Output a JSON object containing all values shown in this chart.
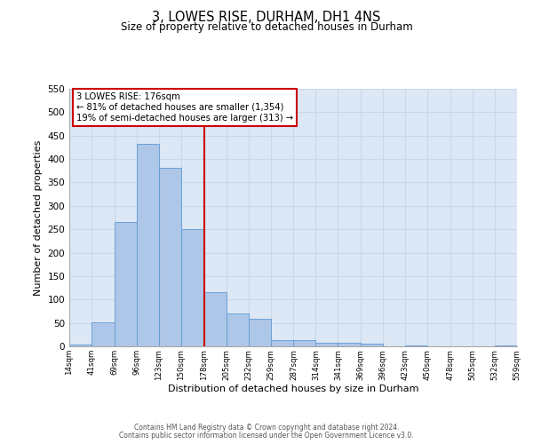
{
  "title": "3, LOWES RISE, DURHAM, DH1 4NS",
  "subtitle": "Size of property relative to detached houses in Durham",
  "xlabel": "Distribution of detached houses by size in Durham",
  "ylabel": "Number of detached properties",
  "bin_edges": [
    14,
    41,
    69,
    96,
    123,
    150,
    178,
    205,
    232,
    259,
    287,
    314,
    341,
    369,
    396,
    423,
    450,
    478,
    505,
    532,
    559
  ],
  "bar_heights": [
    3,
    51,
    265,
    432,
    382,
    250,
    115,
    70,
    58,
    13,
    13,
    8,
    7,
    5,
    0,
    2,
    0,
    0,
    0,
    2
  ],
  "tick_labels": [
    "14sqm",
    "41sqm",
    "69sqm",
    "96sqm",
    "123sqm",
    "150sqm",
    "178sqm",
    "205sqm",
    "232sqm",
    "259sqm",
    "287sqm",
    "314sqm",
    "341sqm",
    "369sqm",
    "396sqm",
    "423sqm",
    "450sqm",
    "478sqm",
    "505sqm",
    "532sqm",
    "559sqm"
  ],
  "bar_color": "#aec6e8",
  "bar_edge_color": "#5b9bd5",
  "vline_x": 178,
  "vline_color": "#cc0000",
  "annotation_line1": "3 LOWES RISE: 176sqm",
  "annotation_line2": "← 81% of detached houses are smaller (1,354)",
  "annotation_line3": "19% of semi-detached houses are larger (313) →",
  "annotation_box_color": "#ffffff",
  "annotation_box_edge_color": "#cc0000",
  "ylim": [
    0,
    550
  ],
  "grid_color": "#c8d8ea",
  "background_color": "#dce8f5",
  "footer1": "Contains HM Land Registry data © Crown copyright and database right 2024.",
  "footer2": "Contains public sector information licensed under the Open Government Licence v3.0."
}
